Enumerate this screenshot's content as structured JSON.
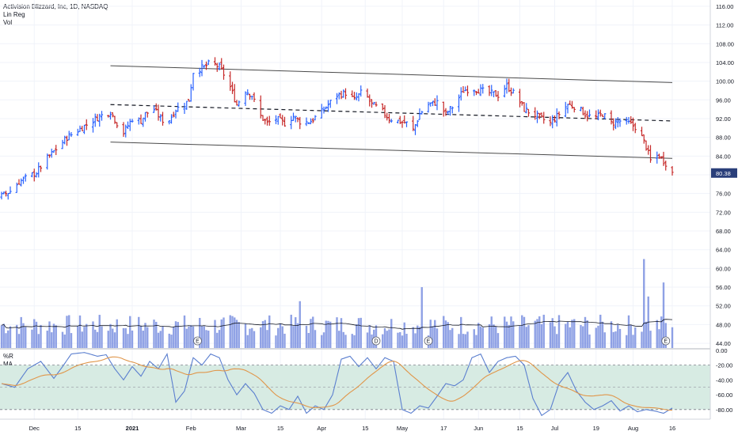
{
  "header": {
    "symbol_line": "Activision Blizzard, Inc, 1D, NASDAQ",
    "study1": "Lin Reg",
    "study2": "Vol"
  },
  "oscillator": {
    "label1": "%R",
    "label2": "MA"
  },
  "colors": {
    "up": "#2962ff",
    "down": "#c62828",
    "volume": "#7b91e0",
    "osc_line": "#5b7fcf",
    "osc_ma": "#e0964a",
    "band_fill": "#d7ebe3",
    "price_tag_bg": "#2a3f7a"
  },
  "chart_data": {
    "type": "ohlc-bar",
    "price_axis": {
      "ticks": [
        "116.00",
        "112.00",
        "108.00",
        "104.00",
        "100.00",
        "96.00",
        "92.00",
        "88.00",
        "84.00",
        "80.00",
        "76.00",
        "72.00",
        "68.00",
        "64.00",
        "60.00",
        "56.00",
        "52.00",
        "48.00",
        "44.00"
      ],
      "values": [
        116,
        112,
        108,
        104,
        100,
        96,
        92,
        88,
        84,
        80,
        76,
        72,
        68,
        64,
        60,
        56,
        52,
        48,
        44
      ],
      "ylim": [
        43,
        117
      ]
    },
    "last_price": "80.38",
    "x_axis": {
      "labels": [
        "Dec",
        "15",
        "2021",
        "Feb",
        "Mar",
        "15",
        "Apr",
        "15",
        "May",
        "17",
        "Jun",
        "15",
        "Jul",
        "19",
        "Aug",
        "16"
      ],
      "positions": [
        15,
        35,
        60,
        87,
        110,
        128,
        147,
        167,
        184,
        203,
        219,
        238,
        254,
        273,
        290,
        308
      ]
    },
    "day_range": [
      0,
      330
    ],
    "price_anchors": [
      [
        0,
        75.5
      ],
      [
        4,
        76.5
      ],
      [
        8,
        78.5
      ],
      [
        12,
        79.5
      ],
      [
        16,
        80.5
      ],
      [
        20,
        83
      ],
      [
        25,
        85.5
      ],
      [
        30,
        88
      ],
      [
        35,
        89.5
      ],
      [
        40,
        91
      ],
      [
        45,
        92.5
      ],
      [
        50,
        93.5
      ],
      [
        53,
        91
      ],
      [
        56,
        89
      ],
      [
        60,
        92
      ],
      [
        64,
        91.5
      ],
      [
        66,
        93
      ],
      [
        70,
        94
      ],
      [
        73,
        92
      ],
      [
        76,
        91
      ],
      [
        80,
        94
      ],
      [
        84,
        95
      ],
      [
        86,
        96
      ],
      [
        88,
        102
      ],
      [
        90,
        102.5
      ],
      [
        93,
        103
      ],
      [
        96,
        104
      ],
      [
        100,
        103
      ],
      [
        104,
        100
      ],
      [
        108,
        95
      ],
      [
        112,
        98
      ],
      [
        115,
        97
      ],
      [
        118,
        93
      ],
      [
        122,
        91
      ],
      [
        126,
        92
      ],
      [
        130,
        91
      ],
      [
        134,
        92.5
      ],
      [
        138,
        91
      ],
      [
        142,
        91.5
      ],
      [
        146,
        93
      ],
      [
        150,
        95
      ],
      [
        154,
        97
      ],
      [
        158,
        97.5
      ],
      [
        162,
        96
      ],
      [
        166,
        98
      ],
      [
        170,
        95
      ],
      [
        174,
        94
      ],
      [
        178,
        92
      ],
      [
        182,
        91.5
      ],
      [
        186,
        91
      ],
      [
        189,
        89.5
      ],
      [
        192,
        93
      ],
      [
        196,
        95
      ],
      [
        200,
        95.5
      ],
      [
        204,
        93
      ],
      [
        208,
        95
      ],
      [
        212,
        98
      ],
      [
        216,
        98.5
      ],
      [
        220,
        98
      ],
      [
        224,
        97.5
      ],
      [
        228,
        97
      ],
      [
        232,
        99
      ],
      [
        236,
        97
      ],
      [
        240,
        94
      ],
      [
        244,
        93
      ],
      [
        248,
        92
      ],
      [
        252,
        91
      ],
      [
        256,
        93
      ],
      [
        260,
        95
      ],
      [
        264,
        94.5
      ],
      [
        268,
        93
      ],
      [
        272,
        92
      ],
      [
        276,
        93
      ],
      [
        280,
        91
      ],
      [
        284,
        91.5
      ],
      [
        288,
        91
      ],
      [
        292,
        90
      ],
      [
        296,
        86
      ],
      [
        298,
        83
      ],
      [
        300,
        84
      ],
      [
        302,
        84
      ],
      [
        304,
        83
      ],
      [
        306,
        82
      ],
      [
        308,
        80.4
      ]
    ],
    "price_day_max": 308,
    "linear_regression": {
      "start_day": 50,
      "end_day": 308,
      "upper": [
        103.3,
        99.7
      ],
      "center": [
        95,
        91.5
      ],
      "lower": [
        87,
        83.5
      ]
    },
    "volume": {
      "baseline_day_avg": 47,
      "spikes": [
        [
          34,
          52
        ],
        [
          83,
          53
        ],
        [
          90,
          58
        ],
        [
          137,
          53
        ],
        [
          193,
          56
        ],
        [
          295,
          62
        ],
        [
          297,
          54
        ],
        [
          304,
          57
        ],
        [
          306,
          59
        ]
      ],
      "earnings_markers": [
        {
          "day": 90,
          "label": "E"
        },
        {
          "day": 172,
          "label": "D"
        },
        {
          "day": 196,
          "label": "E"
        },
        {
          "day": 305,
          "label": "E"
        }
      ]
    },
    "oscillator_axis": {
      "ticks": [
        "0.00",
        "-20.00",
        "-40.00",
        "-60.00",
        "-80.00"
      ],
      "values": [
        0,
        -20,
        -40,
        -60,
        -80
      ],
      "ylim": [
        -93,
        2
      ]
    },
    "oscillator_band": [
      -20,
      -80
    ],
    "oscillator_midline": -50,
    "williams_r_anchors": [
      [
        0,
        -45
      ],
      [
        6,
        -50
      ],
      [
        12,
        -25
      ],
      [
        18,
        -15
      ],
      [
        24,
        -38
      ],
      [
        28,
        -22
      ],
      [
        32,
        -5
      ],
      [
        38,
        -3
      ],
      [
        44,
        -8
      ],
      [
        48,
        -6
      ],
      [
        52,
        -25
      ],
      [
        56,
        -40
      ],
      [
        60,
        -22
      ],
      [
        64,
        -35
      ],
      [
        68,
        -15
      ],
      [
        72,
        -25
      ],
      [
        76,
        -5
      ],
      [
        80,
        -70
      ],
      [
        84,
        -55
      ],
      [
        88,
        -10
      ],
      [
        92,
        -20
      ],
      [
        96,
        -5
      ],
      [
        100,
        -10
      ],
      [
        104,
        -40
      ],
      [
        108,
        -60
      ],
      [
        112,
        -45
      ],
      [
        116,
        -58
      ],
      [
        120,
        -80
      ],
      [
        124,
        -85
      ],
      [
        128,
        -75
      ],
      [
        132,
        -80
      ],
      [
        136,
        -62
      ],
      [
        140,
        -85
      ],
      [
        144,
        -75
      ],
      [
        148,
        -80
      ],
      [
        152,
        -60
      ],
      [
        156,
        -12
      ],
      [
        160,
        -8
      ],
      [
        164,
        -22
      ],
      [
        168,
        -10
      ],
      [
        172,
        -25
      ],
      [
        176,
        -10
      ],
      [
        180,
        -15
      ],
      [
        184,
        -80
      ],
      [
        188,
        -85
      ],
      [
        192,
        -75
      ],
      [
        196,
        -78
      ],
      [
        200,
        -62
      ],
      [
        204,
        -45
      ],
      [
        208,
        -48
      ],
      [
        212,
        -40
      ],
      [
        216,
        -10
      ],
      [
        220,
        -5
      ],
      [
        224,
        -30
      ],
      [
        228,
        -15
      ],
      [
        232,
        -10
      ],
      [
        236,
        -8
      ],
      [
        240,
        -20
      ],
      [
        244,
        -65
      ],
      [
        248,
        -88
      ],
      [
        252,
        -80
      ],
      [
        256,
        -45
      ],
      [
        260,
        -30
      ],
      [
        264,
        -55
      ],
      [
        268,
        -70
      ],
      [
        272,
        -80
      ],
      [
        276,
        -75
      ],
      [
        280,
        -68
      ],
      [
        284,
        -82
      ],
      [
        288,
        -75
      ],
      [
        292,
        -83
      ],
      [
        296,
        -80
      ],
      [
        300,
        -82
      ],
      [
        304,
        -85
      ],
      [
        308,
        -78
      ]
    ],
    "ma_period": 12
  }
}
